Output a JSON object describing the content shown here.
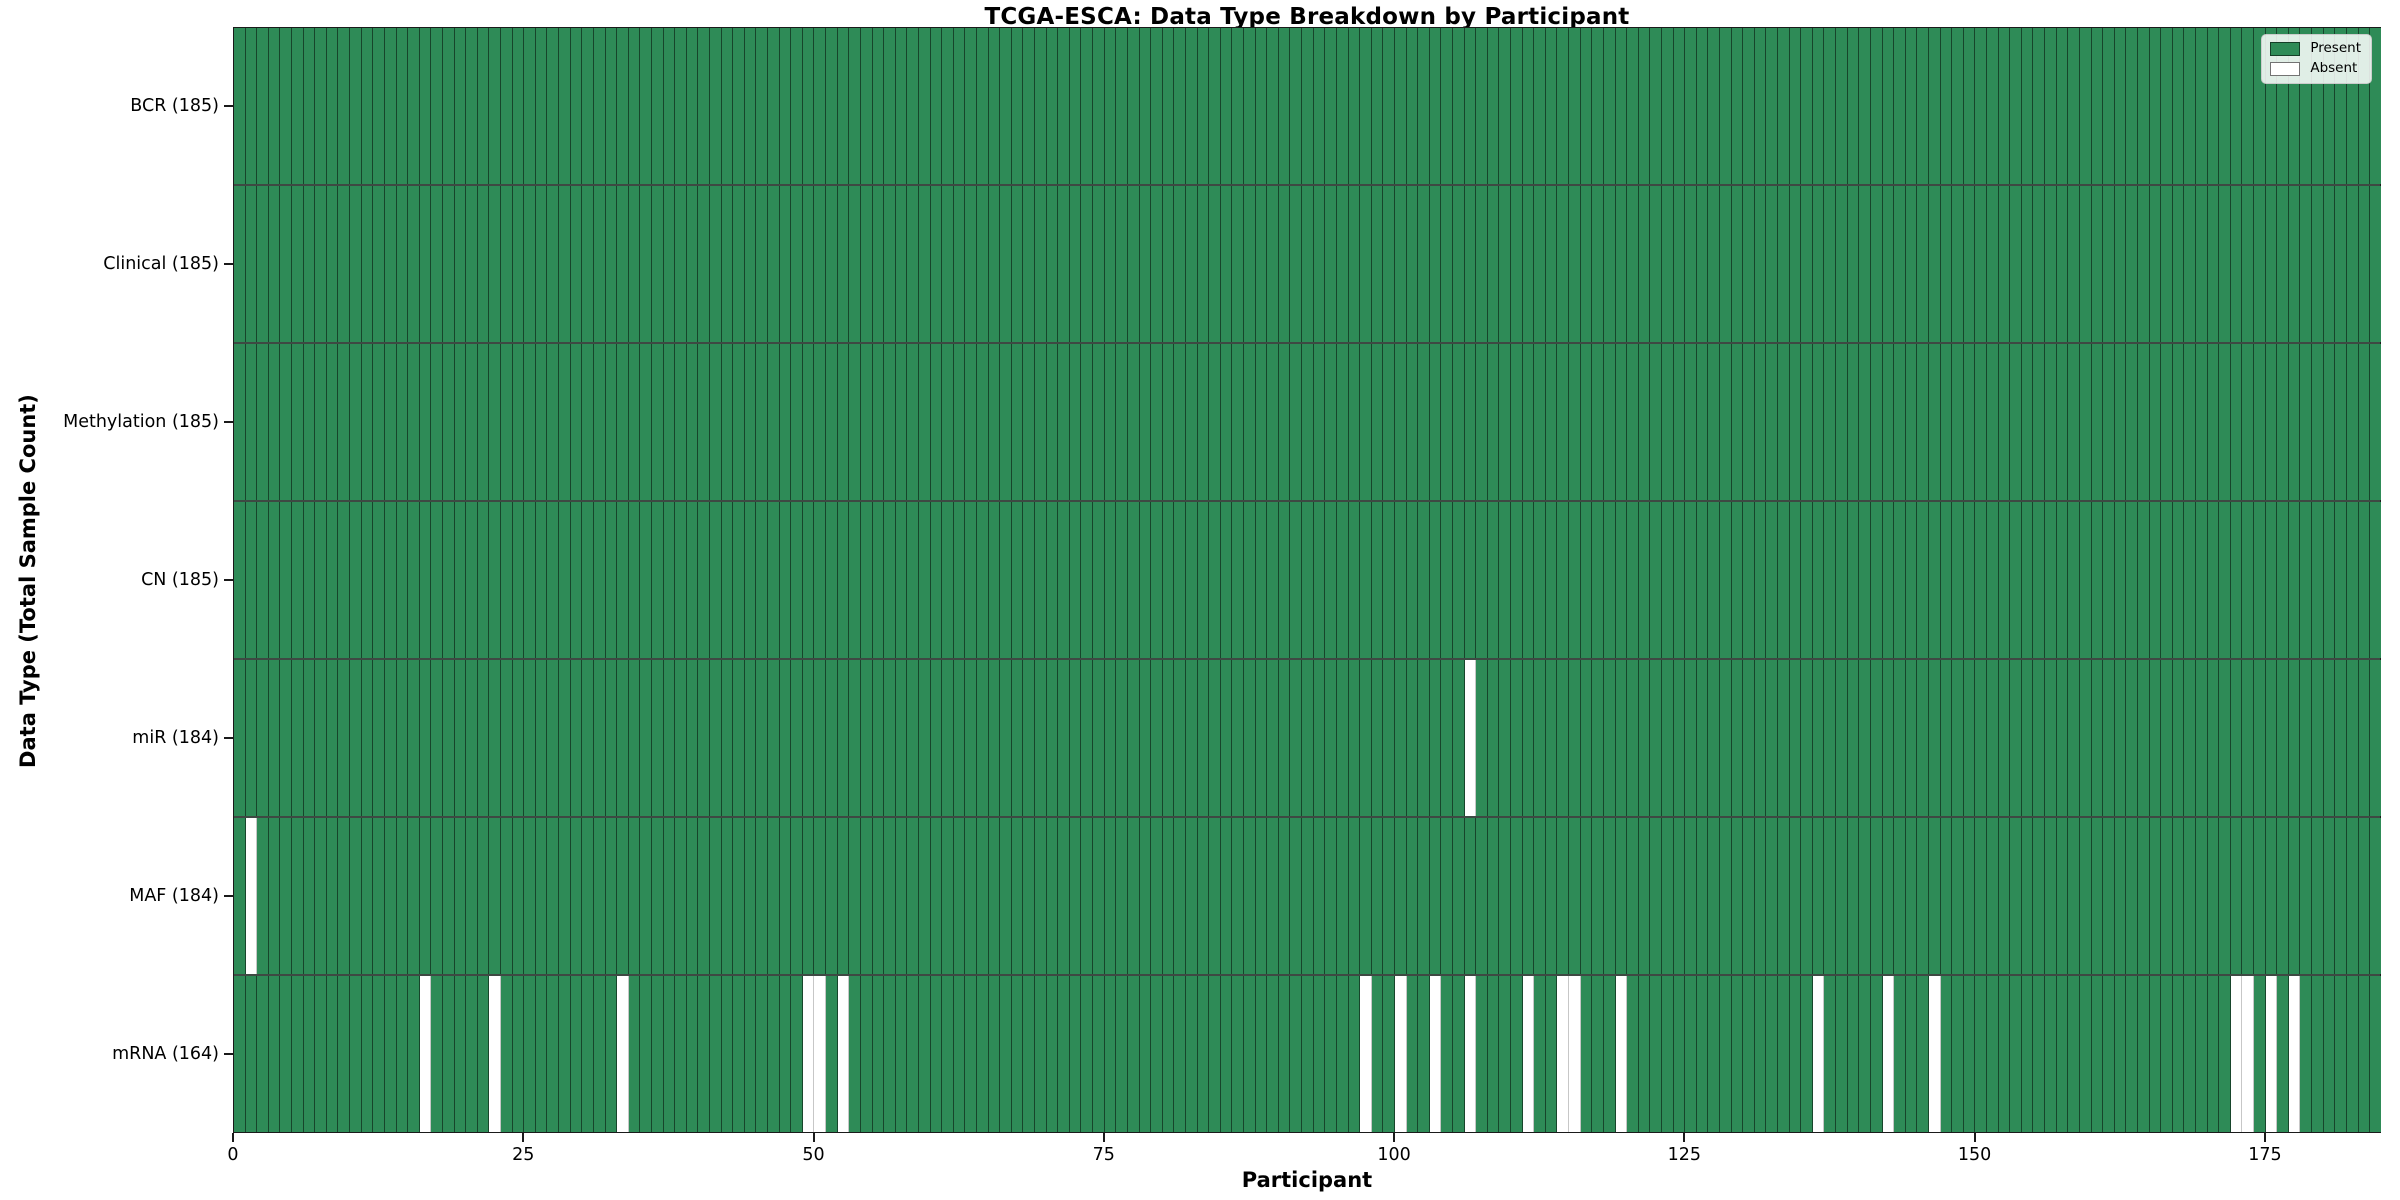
{
  "chart_data": {
    "type": "heatmap",
    "title": "TCGA-ESCA: Data Type Breakdown by Participant",
    "xlabel": "Participant",
    "ylabel": "Data Type (Total Sample Count)",
    "n_participants": 185,
    "xticks": [
      0,
      25,
      50,
      75,
      100,
      125,
      150,
      175
    ],
    "legend": {
      "position": "upper right",
      "present_label": "Present",
      "absent_label": "Absent"
    },
    "colors": {
      "present": "#2e8b57",
      "absent": "#ffffff",
      "cell_edge": "rgba(0,0,0,0.5)"
    },
    "grid": false,
    "rows": [
      {
        "label": "BCR (185)",
        "data_type": "BCR",
        "total_samples": 185,
        "absent_participants": []
      },
      {
        "label": "Clinical (185)",
        "data_type": "Clinical",
        "total_samples": 185,
        "absent_participants": []
      },
      {
        "label": "Methylation (185)",
        "data_type": "Methylation",
        "total_samples": 185,
        "absent_participants": []
      },
      {
        "label": "CN (185)",
        "data_type": "CN",
        "total_samples": 185,
        "absent_participants": []
      },
      {
        "label": "miR (184)",
        "data_type": "miR",
        "total_samples": 184,
        "absent_participants": [
          106
        ]
      },
      {
        "label": "MAF (184)",
        "data_type": "MAF",
        "total_samples": 184,
        "absent_participants": [
          1
        ]
      },
      {
        "label": "mRNA (164)",
        "data_type": "mRNA",
        "total_samples": 164,
        "absent_participants": [
          16,
          22,
          33,
          49,
          50,
          52,
          97,
          100,
          103,
          106,
          111,
          114,
          115,
          119,
          136,
          142,
          146,
          172,
          173,
          175,
          177
        ]
      }
    ]
  }
}
